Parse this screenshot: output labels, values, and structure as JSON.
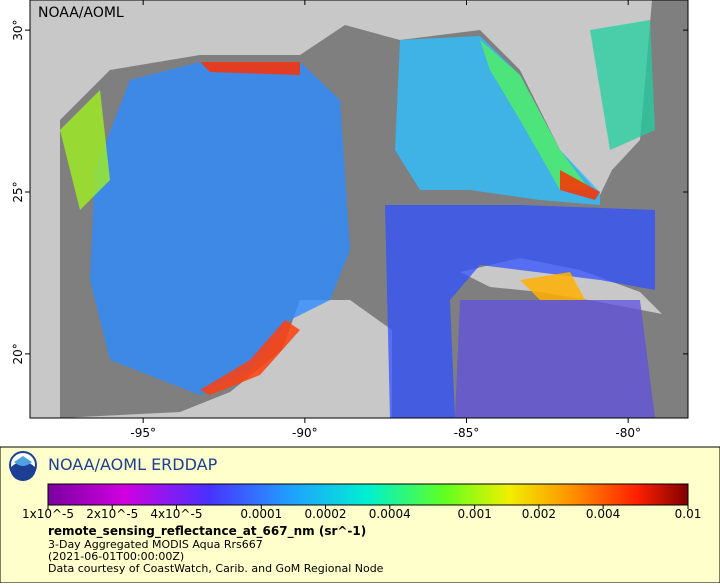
{
  "map": {
    "watermark": "NOAA/AOML",
    "lonlim": [
      -98.5,
      -78.15
    ],
    "latlim": [
      18.02,
      30.93
    ],
    "lon_ticks": [
      {
        "value": -95,
        "label": "-95°"
      },
      {
        "value": -90,
        "label": "-90°"
      },
      {
        "value": -85,
        "label": "-85°"
      },
      {
        "value": -80,
        "label": "-80°"
      }
    ],
    "lat_ticks": [
      {
        "value": 20,
        "label": "20°"
      },
      {
        "value": 25,
        "label": "25°"
      },
      {
        "value": 30,
        "label": "30°"
      }
    ]
  },
  "legend": {
    "title": "NOAA/AOML ERDDAP",
    "colorbar": {
      "scale": "log",
      "lim": [
        1e-05,
        0.01
      ],
      "ticks": [
        {
          "value": 1e-05,
          "label": "1x10^-5"
        },
        {
          "value": 2e-05,
          "label": "2x10^-5"
        },
        {
          "value": 4e-05,
          "label": "4x10^-5"
        },
        0.0001,
        0.0002,
        0.0004,
        0.001,
        0.002,
        0.004,
        0.01
      ]
    },
    "variable": "remote_sensing_reflectance_at_667_nm (sr^-1)",
    "lines": [
      "3-Day Aggregated MODIS Aqua Rrs667",
      "(2021-06-01T00:00:00Z)",
      "Data courtesy of CoastWatch, Carib. and GoM Regional Node"
    ]
  }
}
